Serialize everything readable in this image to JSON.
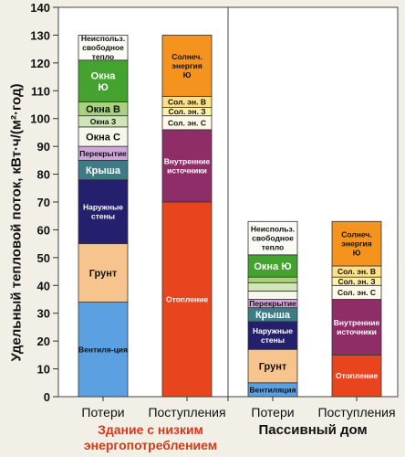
{
  "chart_data": {
    "type": "stacked-bar",
    "ylabel": "Удельный тепловой поток, кВт·ч/(м²·год)",
    "ylim": [
      0,
      140
    ],
    "yticks": [
      0,
      10,
      20,
      30,
      40,
      50,
      60,
      70,
      80,
      90,
      100,
      110,
      120,
      130,
      140
    ],
    "grid": false,
    "groups": [
      {
        "label": "Здание с низким энергопотреблением",
        "bars": [
          "Потери",
          "Поступления"
        ]
      },
      {
        "label": "Пассивный дом",
        "bars": [
          "Потери",
          "Поступления"
        ]
      }
    ],
    "bars": [
      {
        "label": "Потери",
        "group": 1,
        "segments": [
          {
            "name": "Вентиля-ция",
            "from": 0,
            "to": 34,
            "color": "#5ba0e0"
          },
          {
            "name": "Грунт",
            "from": 34,
            "to": 55,
            "color": "#f7c48e"
          },
          {
            "name": "Наружные стены",
            "from": 55,
            "to": 78,
            "color": "#24206e"
          },
          {
            "name": "Крыша",
            "from": 78,
            "to": 85,
            "color": "#3f7b86"
          },
          {
            "name": "Перекрытие",
            "from": 85,
            "to": 90,
            "color": "#cfa6d8"
          },
          {
            "name": "Окна С",
            "from": 90,
            "to": 97,
            "color": "#f4f7e9"
          },
          {
            "name": "Окна З",
            "from": 97,
            "to": 101,
            "color": "#d0e6b8"
          },
          {
            "name": "Окна В",
            "from": 101,
            "to": 106,
            "color": "#a8d27e"
          },
          {
            "name": "Окна Ю",
            "from": 106,
            "to": 121,
            "color": "#44a32f"
          },
          {
            "name": "Неиспольз. свободное тепло",
            "from": 121,
            "to": 130,
            "color": "#fbfbf6"
          }
        ]
      },
      {
        "label": "Поступления",
        "group": 1,
        "segments": [
          {
            "name": "Отопление",
            "from": 0,
            "to": 70,
            "color": "#e8451e"
          },
          {
            "name": "Внутренние источники",
            "from": 70,
            "to": 96,
            "color": "#8e2d68"
          },
          {
            "name": "Сол. эн. С",
            "from": 96,
            "to": 101,
            "color": "#fffbe8"
          },
          {
            "name": "Сол. эн. З",
            "from": 101,
            "to": 104,
            "color": "#fff1a8"
          },
          {
            "name": "Сол. эн. В",
            "from": 104,
            "to": 108,
            "color": "#fde08a"
          },
          {
            "name": "Солнеч. энергия Ю",
            "from": 108,
            "to": 130,
            "color": "#f4941f"
          }
        ]
      },
      {
        "label": "Потери",
        "group": 2,
        "segments": [
          {
            "name": "Вентиляция",
            "from": 0,
            "to": 5,
            "color": "#5ba0e0"
          },
          {
            "name": "Грунт",
            "from": 5,
            "to": 17,
            "color": "#f7c48e"
          },
          {
            "name": "Наружные стены",
            "from": 17,
            "to": 27,
            "color": "#24206e"
          },
          {
            "name": "Крыша",
            "from": 27,
            "to": 32,
            "color": "#3f7b86"
          },
          {
            "name": "Перекрытие",
            "from": 32,
            "to": 35,
            "color": "#cfa6d8"
          },
          {
            "name": "",
            "from": 35,
            "to": 38,
            "color": "#f4f7e9"
          },
          {
            "name": "",
            "from": 38,
            "to": 41,
            "color": "#d0e6b8"
          },
          {
            "name": "",
            "from": 41,
            "to": 43,
            "color": "#a8d27e"
          },
          {
            "name": "Окна Ю",
            "from": 43,
            "to": 51,
            "color": "#44a32f"
          },
          {
            "name": "Неиспольз. свободное тепло",
            "from": 51,
            "to": 63,
            "color": "#fbfbf6"
          }
        ]
      },
      {
        "label": "Поступления",
        "group": 2,
        "segments": [
          {
            "name": "Отопление",
            "from": 0,
            "to": 15,
            "color": "#e8451e"
          },
          {
            "name": "Внутренние источники",
            "from": 15,
            "to": 35,
            "color": "#8e2d68"
          },
          {
            "name": "Сол. эн. С",
            "from": 35,
            "to": 40,
            "color": "#fffbe8"
          },
          {
            "name": "Сол. эн. З",
            "from": 40,
            "to": 43,
            "color": "#fff1a8"
          },
          {
            "name": "Сол. эн. В",
            "from": 43,
            "to": 47,
            "color": "#fde08a"
          },
          {
            "name": "Солнеч. энергия Ю",
            "from": 47,
            "to": 63,
            "color": "#f4941f"
          }
        ]
      }
    ]
  }
}
